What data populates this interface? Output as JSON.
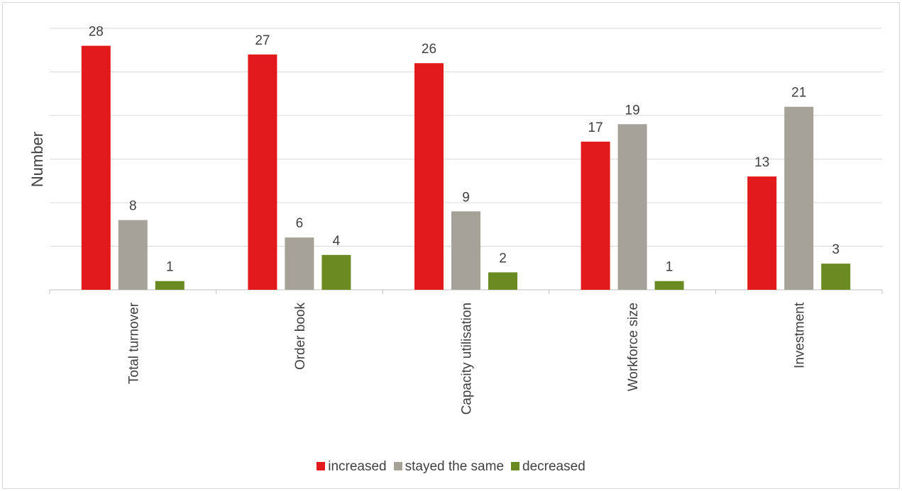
{
  "chart_data": {
    "type": "bar",
    "title": "",
    "xlabel": "",
    "ylabel": "Number",
    "ylim": [
      0,
      30
    ],
    "grid": true,
    "legend_position": "bottom",
    "categories": [
      "Total turnover",
      "Order book",
      "Capacity utilisation",
      "Workforce size",
      "Investment"
    ],
    "series": [
      {
        "name": "increased",
        "color": "#e31a1c",
        "values": [
          28,
          27,
          26,
          17,
          13
        ]
      },
      {
        "name": "stayed the same",
        "color": "#a6a29a",
        "values": [
          8,
          6,
          9,
          19,
          21
        ]
      },
      {
        "name": "decreased",
        "color": "#6a8a22",
        "values": [
          1,
          4,
          2,
          1,
          3
        ]
      }
    ]
  }
}
